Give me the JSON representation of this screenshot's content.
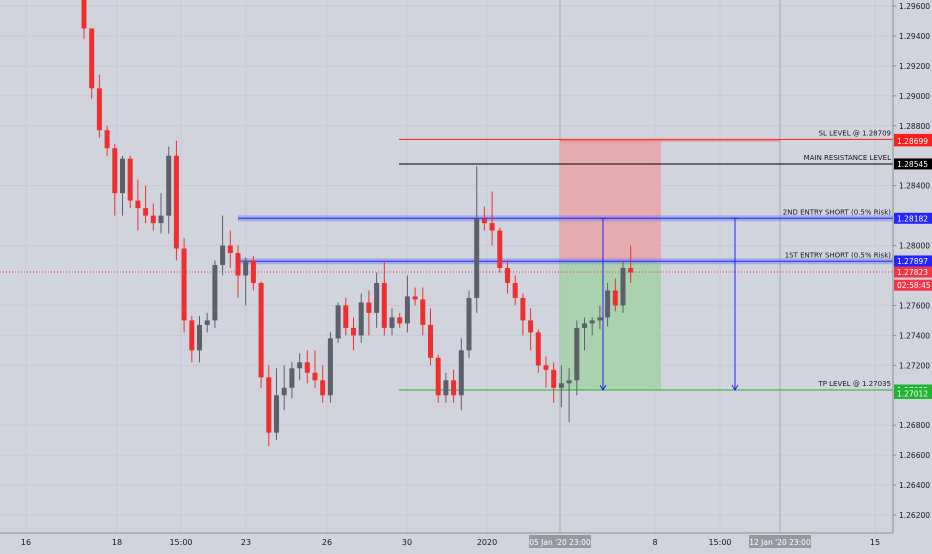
{
  "chart_data": {
    "type": "candlestick",
    "ylim": [
      1.2608,
      1.2964
    ],
    "grid": true,
    "y_ticks": [
      "1.29600",
      "1.29400",
      "1.29200",
      "1.29000",
      "1.28800",
      "1.28400",
      "1.28000",
      "1.27600",
      "1.27400",
      "1.27200",
      "1.26800",
      "1.26600",
      "1.26400",
      "1.26200"
    ],
    "x_ticks": [
      "16",
      "18",
      "15:00",
      "23",
      "26",
      "30",
      "2020",
      "8",
      "15:00",
      "15"
    ],
    "x_highlight_ticks": [
      "05 Jan '20",
      "23:00",
      "12 Jan '20",
      "23:00"
    ],
    "colors": {
      "up": "#5d606b",
      "down": "#ef2f2f",
      "sl": "#ff1e1e",
      "tp": "#22b532",
      "resistance": "#000000",
      "entry": "#2424ff",
      "current": "#f23645",
      "risk_zone": "#e8a6aa",
      "reward_zone": "#a5d1a9"
    },
    "levels": [
      {
        "label": "SL LEVEL @ 1.28709",
        "value": 1.28709,
        "badge": "1.28709",
        "kind": "sl"
      },
      {
        "label": "MAIN RESISTANCE LEVEL",
        "value": 1.28545,
        "badge": "1.28545",
        "kind": "resistance"
      },
      {
        "label": "2ND ENTRY SHORT (0.5% Risk)",
        "value": 1.28182,
        "badge": "1.28182",
        "kind": "entry"
      },
      {
        "label": "1ST ENTRY SHORT (0.5% Risk)",
        "value": 1.27895,
        "badge": "1.27895",
        "kind": "entry"
      },
      {
        "label": "TP LEVEL @ 1.27035",
        "value": 1.27035,
        "badge": "1.27035",
        "kind": "tp"
      }
    ],
    "extra_badges": [
      {
        "text": "1.28699",
        "value": 1.28699,
        "kind": "sl"
      },
      {
        "text": "1.27897",
        "value": 1.27897,
        "kind": "entry"
      },
      {
        "text": "1.27823",
        "value": 1.27823,
        "kind": "current"
      },
      {
        "text": "02:58:45",
        "value": 1.27735,
        "kind": "current"
      },
      {
        "text": "1.27012",
        "value": 1.27012,
        "kind": "tp"
      }
    ],
    "current_price": 1.27823,
    "position": {
      "entry": 1.27895,
      "stop": 1.28709,
      "target": 1.27035
    },
    "candles": [
      [
        1.2964,
        1.2964,
        1.2938,
        1.2945
      ],
      [
        1.2945,
        1.2945,
        1.2898,
        1.2905
      ],
      [
        1.2905,
        1.2914,
        1.2872,
        1.2877
      ],
      [
        1.2877,
        1.288,
        1.286,
        1.2865
      ],
      [
        1.2865,
        1.2868,
        1.282,
        1.2835
      ],
      [
        1.2835,
        1.286,
        1.282,
        1.2858
      ],
      [
        1.2858,
        1.286,
        1.2825,
        1.283
      ],
      [
        1.283,
        1.2844,
        1.281,
        1.2825
      ],
      [
        1.2825,
        1.284,
        1.2815,
        1.282
      ],
      [
        1.282,
        1.2828,
        1.281,
        1.2815
      ],
      [
        1.2815,
        1.2835,
        1.2808,
        1.282
      ],
      [
        1.282,
        1.2866,
        1.2808,
        1.286
      ],
      [
        1.286,
        1.287,
        1.279,
        1.2798
      ],
      [
        1.2798,
        1.2805,
        1.2742,
        1.275
      ],
      [
        1.275,
        1.2753,
        1.2722,
        1.273
      ],
      [
        1.273,
        1.2753,
        1.2722,
        1.2747
      ],
      [
        1.2747,
        1.2755,
        1.2742,
        1.275
      ],
      [
        1.275,
        1.279,
        1.2745,
        1.2787
      ],
      [
        1.2787,
        1.282,
        1.278,
        1.28
      ],
      [
        1.28,
        1.281,
        1.2785,
        1.2795
      ],
      [
        1.2795,
        1.28,
        1.2765,
        1.278
      ],
      [
        1.278,
        1.2792,
        1.276,
        1.279
      ],
      [
        1.279,
        1.2793,
        1.277,
        1.2775
      ],
      [
        1.2775,
        1.2776,
        1.2705,
        1.2712
      ],
      [
        1.2712,
        1.272,
        1.2666,
        1.2675
      ],
      [
        1.2675,
        1.2718,
        1.267,
        1.27
      ],
      [
        1.27,
        1.272,
        1.269,
        1.2705
      ],
      [
        1.2705,
        1.2722,
        1.2698,
        1.2718
      ],
      [
        1.2718,
        1.2728,
        1.271,
        1.2722
      ],
      [
        1.2722,
        1.273,
        1.2708,
        1.2715
      ],
      [
        1.2715,
        1.273,
        1.2705,
        1.271
      ],
      [
        1.271,
        1.272,
        1.2695,
        1.27
      ],
      [
        1.27,
        1.2742,
        1.2695,
        1.2738
      ],
      [
        1.2738,
        1.2762,
        1.2735,
        1.276
      ],
      [
        1.276,
        1.2765,
        1.274,
        1.2745
      ],
      [
        1.2745,
        1.2752,
        1.273,
        1.274
      ],
      [
        1.274,
        1.2768,
        1.2735,
        1.2762
      ],
      [
        1.2762,
        1.277,
        1.274,
        1.2755
      ],
      [
        1.2755,
        1.2782,
        1.2745,
        1.2775
      ],
      [
        1.2775,
        1.279,
        1.274,
        1.2745
      ],
      [
        1.2745,
        1.2758,
        1.274,
        1.2752
      ],
      [
        1.2752,
        1.2755,
        1.2745,
        1.2748
      ],
      [
        1.2748,
        1.278,
        1.2742,
        1.2766
      ],
      [
        1.2766,
        1.2772,
        1.276,
        1.2764
      ],
      [
        1.2764,
        1.2772,
        1.274,
        1.2747
      ],
      [
        1.2747,
        1.2758,
        1.272,
        1.2725
      ],
      [
        1.2725,
        1.2727,
        1.2695,
        1.27
      ],
      [
        1.27,
        1.2715,
        1.2695,
        1.271
      ],
      [
        1.271,
        1.2717,
        1.2695,
        1.27
      ],
      [
        1.27,
        1.2738,
        1.269,
        1.273
      ],
      [
        1.273,
        1.277,
        1.2725,
        1.2765
      ],
      [
        1.2765,
        1.2853,
        1.2755,
        1.2818
      ],
      [
        1.2818,
        1.2826,
        1.281,
        1.2815
      ],
      [
        1.2815,
        1.2836,
        1.28,
        1.281
      ],
      [
        1.281,
        1.2812,
        1.2782,
        1.2785
      ],
      [
        1.2785,
        1.279,
        1.2768,
        1.2775
      ],
      [
        1.2775,
        1.278,
        1.276,
        1.2765
      ],
      [
        1.2765,
        1.2768,
        1.274,
        1.275
      ],
      [
        1.275,
        1.2758,
        1.273,
        1.2742
      ],
      [
        1.2742,
        1.2744,
        1.2715,
        1.272
      ],
      [
        1.272,
        1.2726,
        1.2705,
        1.2717
      ],
      [
        1.2717,
        1.2722,
        1.2695,
        1.2705
      ],
      [
        1.2705,
        1.272,
        1.2692,
        1.2708
      ],
      [
        1.2708,
        1.2718,
        1.2682,
        1.271
      ],
      [
        1.271,
        1.275,
        1.27,
        1.2745
      ],
      [
        1.2745,
        1.2752,
        1.273,
        1.2748
      ],
      [
        1.2748,
        1.2752,
        1.274,
        1.275
      ],
      [
        1.275,
        1.276,
        1.2744,
        1.2752
      ],
      [
        1.2752,
        1.2775,
        1.2746,
        1.277
      ],
      [
        1.277,
        1.2778,
        1.2756,
        1.276
      ],
      [
        1.276,
        1.279,
        1.2755,
        1.2785
      ],
      [
        1.2785,
        1.28,
        1.2775,
        1.2782
      ]
    ]
  }
}
